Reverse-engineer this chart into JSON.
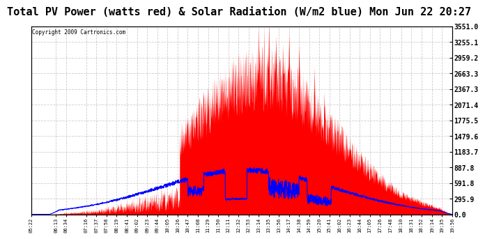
{
  "title": "Total PV Power (watts red) & Solar Radiation (W/m2 blue) Mon Jun 22 20:27",
  "copyright": "Copyright 2009 Cartronics.com",
  "ylabel_right_ticks": [
    0.0,
    295.9,
    591.8,
    887.8,
    1183.7,
    1479.6,
    1775.5,
    2071.4,
    2367.3,
    2663.3,
    2959.2,
    3255.1,
    3551.0
  ],
  "ymax": 3551.0,
  "ymin": 0.0,
  "background_color": "#ffffff",
  "plot_bg_color": "#ffffff",
  "grid_color": "#cccccc",
  "title_fontsize": 11,
  "x_labels": [
    "05:22",
    "06:13",
    "06:34",
    "07:16",
    "07:37",
    "07:58",
    "08:19",
    "08:41",
    "09:02",
    "09:23",
    "09:44",
    "10:05",
    "10:26",
    "10:47",
    "11:08",
    "11:29",
    "11:50",
    "12:11",
    "12:32",
    "12:53",
    "13:14",
    "13:35",
    "13:56",
    "14:17",
    "14:38",
    "14:59",
    "15:20",
    "15:41",
    "16:02",
    "16:23",
    "16:44",
    "17:05",
    "17:26",
    "17:48",
    "18:10",
    "18:31",
    "18:52",
    "19:14",
    "19:35",
    "19:56"
  ]
}
